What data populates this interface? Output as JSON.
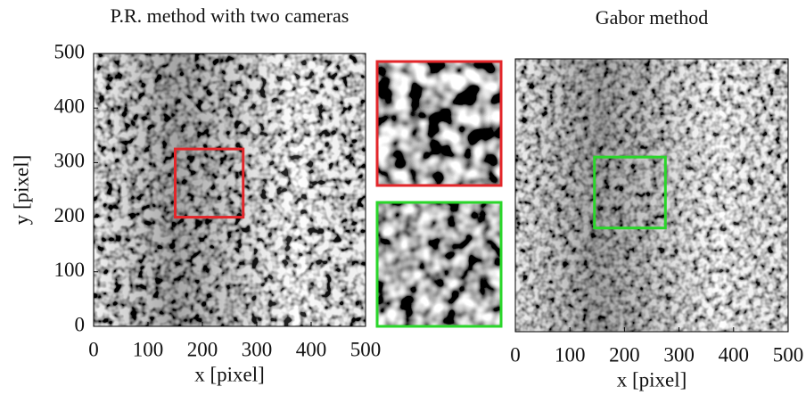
{
  "chart_data": [
    {
      "type": "image",
      "title": "P.R. method with two cameras",
      "xlabel": "x [pixel]",
      "ylabel": "y [pixel]",
      "xlim": [
        0,
        500
      ],
      "ylim": [
        0,
        500
      ],
      "xticks": [
        0,
        100,
        200,
        300,
        400,
        500
      ],
      "yticks": [
        0,
        100,
        200,
        300,
        400,
        500
      ],
      "highlight": {
        "xlim": [
          150,
          275
        ],
        "ylim": [
          200,
          325
        ],
        "color": "#e3262a"
      }
    },
    {
      "type": "image",
      "title": "Gabor method",
      "xlabel": "x [pixel]",
      "xlim": [
        0,
        500
      ],
      "ylim": [
        0,
        500
      ],
      "xticks": [
        0,
        100,
        200,
        300,
        400,
        500
      ],
      "highlight": {
        "xlim": [
          145,
          275
        ],
        "ylim": [
          190,
          320
        ],
        "color": "#2ad62a"
      }
    }
  ]
}
